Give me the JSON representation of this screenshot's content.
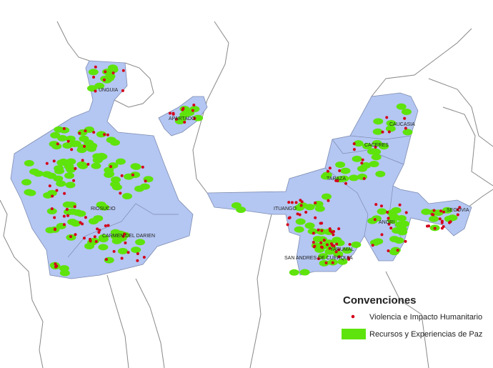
{
  "places": {
    "unguia": "UNGUIA",
    "apartado": "APARTADO",
    "riosucio": "RIOSUCIO",
    "carmen": "CARMEN DEL DARIEN",
    "caucasia": "CAUCASIA",
    "caceres": "CACERES",
    "taraza": "TARAZA",
    "ituango": "ITUANGO",
    "anori": "ANORI",
    "segovia": "SEGOVIA",
    "yarumal": "YARUMAL",
    "san_andres": "SAN ANDRES DE CUERQUIA"
  },
  "legend": {
    "title": "Convenciones",
    "items": [
      "Violencia e Impacto Humanitario",
      "Recursos y Experiencias de Paz"
    ]
  }
}
